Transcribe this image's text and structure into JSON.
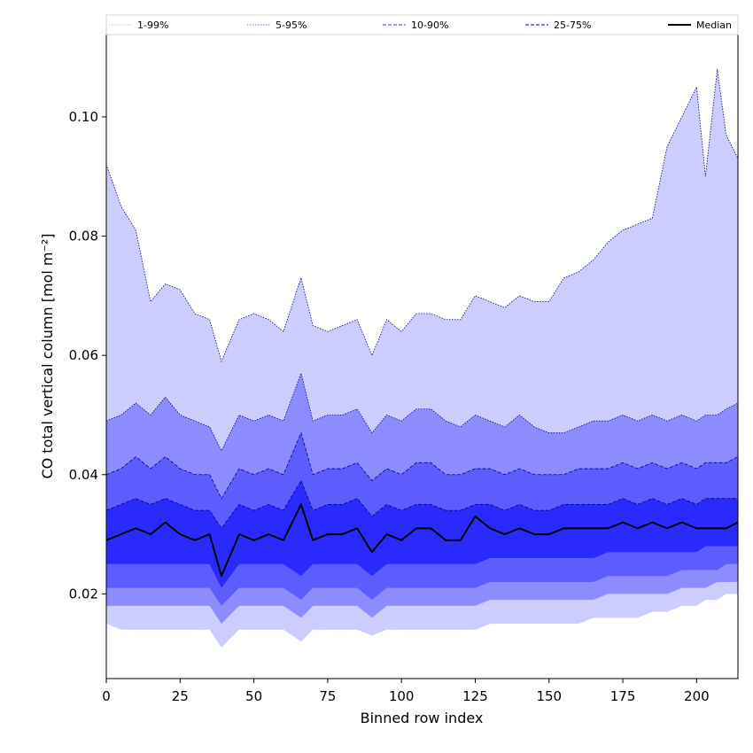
{
  "chart_data": {
    "type": "area",
    "xlabel": "Binned row index",
    "ylabel": "CO total vertical column [mol m⁻²]",
    "xlim": [
      0,
      214
    ],
    "ylim": [
      0.0058,
      0.1138
    ],
    "xticks": [
      "0",
      "25",
      "50",
      "75",
      "100",
      "125",
      "150",
      "175",
      "200"
    ],
    "yticks": [
      "0.02",
      "0.04",
      "0.06",
      "0.08",
      "0.10"
    ],
    "grid": false,
    "legend_position": "top",
    "x": [
      0,
      5,
      10,
      15,
      20,
      25,
      30,
      35,
      39,
      45,
      50,
      55,
      60,
      66,
      70,
      75,
      80,
      85,
      90,
      95,
      100,
      105,
      110,
      115,
      120,
      125,
      130,
      135,
      140,
      145,
      150,
      155,
      160,
      165,
      170,
      175,
      180,
      185,
      190,
      195,
      200,
      203,
      207,
      210,
      214
    ],
    "series": [
      {
        "name": "1-99%",
        "style": "dotted",
        "color": "#ccccff",
        "upper": [
          0.092,
          0.085,
          0.081,
          0.069,
          0.072,
          0.071,
          0.067,
          0.066,
          0.059,
          0.066,
          0.067,
          0.066,
          0.064,
          0.073,
          0.065,
          0.064,
          0.065,
          0.066,
          0.06,
          0.066,
          0.064,
          0.067,
          0.067,
          0.066,
          0.066,
          0.07,
          0.069,
          0.068,
          0.07,
          0.069,
          0.069,
          0.073,
          0.074,
          0.076,
          0.079,
          0.081,
          0.082,
          0.083,
          0.095,
          0.1,
          0.105,
          0.09,
          0.108,
          0.097,
          0.093
        ],
        "lower": [
          0.015,
          0.014,
          0.014,
          0.014,
          0.014,
          0.014,
          0.014,
          0.014,
          0.011,
          0.014,
          0.014,
          0.014,
          0.014,
          0.012,
          0.014,
          0.014,
          0.014,
          0.014,
          0.013,
          0.014,
          0.014,
          0.014,
          0.014,
          0.014,
          0.014,
          0.014,
          0.015,
          0.015,
          0.015,
          0.015,
          0.015,
          0.015,
          0.015,
          0.016,
          0.016,
          0.016,
          0.016,
          0.017,
          0.017,
          0.018,
          0.018,
          0.019,
          0.019,
          0.02,
          0.02
        ]
      },
      {
        "name": "5-95%",
        "style": "dotted",
        "color": "#8c8cff",
        "upper": [
          0.049,
          0.05,
          0.052,
          0.05,
          0.053,
          0.05,
          0.049,
          0.048,
          0.044,
          0.05,
          0.049,
          0.05,
          0.049,
          0.057,
          0.049,
          0.05,
          0.05,
          0.051,
          0.047,
          0.05,
          0.049,
          0.051,
          0.051,
          0.049,
          0.048,
          0.05,
          0.049,
          0.048,
          0.05,
          0.048,
          0.047,
          0.047,
          0.048,
          0.049,
          0.049,
          0.05,
          0.049,
          0.05,
          0.049,
          0.05,
          0.049,
          0.05,
          0.05,
          0.051,
          0.052
        ],
        "lower": [
          0.018,
          0.018,
          0.018,
          0.018,
          0.018,
          0.018,
          0.018,
          0.018,
          0.015,
          0.018,
          0.018,
          0.018,
          0.018,
          0.016,
          0.018,
          0.018,
          0.018,
          0.018,
          0.016,
          0.018,
          0.018,
          0.018,
          0.018,
          0.018,
          0.018,
          0.018,
          0.019,
          0.019,
          0.019,
          0.019,
          0.019,
          0.019,
          0.019,
          0.019,
          0.02,
          0.02,
          0.02,
          0.02,
          0.02,
          0.021,
          0.021,
          0.021,
          0.022,
          0.022,
          0.022
        ]
      },
      {
        "name": "10-90%",
        "style": "dashed",
        "color": "#5c5cff",
        "upper": [
          0.04,
          0.041,
          0.043,
          0.041,
          0.043,
          0.041,
          0.04,
          0.04,
          0.036,
          0.041,
          0.04,
          0.041,
          0.04,
          0.047,
          0.04,
          0.041,
          0.041,
          0.042,
          0.039,
          0.041,
          0.04,
          0.042,
          0.042,
          0.04,
          0.04,
          0.041,
          0.041,
          0.04,
          0.041,
          0.04,
          0.04,
          0.04,
          0.041,
          0.041,
          0.041,
          0.042,
          0.041,
          0.042,
          0.041,
          0.042,
          0.041,
          0.042,
          0.042,
          0.042,
          0.043
        ],
        "lower": [
          0.021,
          0.021,
          0.021,
          0.021,
          0.021,
          0.021,
          0.021,
          0.021,
          0.018,
          0.021,
          0.021,
          0.021,
          0.021,
          0.019,
          0.021,
          0.021,
          0.021,
          0.021,
          0.019,
          0.021,
          0.021,
          0.021,
          0.021,
          0.021,
          0.021,
          0.021,
          0.022,
          0.022,
          0.022,
          0.022,
          0.022,
          0.022,
          0.022,
          0.022,
          0.023,
          0.023,
          0.023,
          0.023,
          0.023,
          0.024,
          0.024,
          0.024,
          0.024,
          0.025,
          0.025
        ]
      },
      {
        "name": "25-75%",
        "style": "dashed",
        "color": "#2a2aff",
        "upper": [
          0.034,
          0.035,
          0.036,
          0.035,
          0.036,
          0.035,
          0.034,
          0.034,
          0.031,
          0.035,
          0.034,
          0.035,
          0.034,
          0.039,
          0.034,
          0.035,
          0.035,
          0.036,
          0.033,
          0.035,
          0.034,
          0.035,
          0.035,
          0.034,
          0.034,
          0.035,
          0.035,
          0.034,
          0.035,
          0.034,
          0.034,
          0.035,
          0.035,
          0.035,
          0.035,
          0.036,
          0.035,
          0.036,
          0.035,
          0.036,
          0.035,
          0.036,
          0.036,
          0.036,
          0.036
        ],
        "lower": [
          0.025,
          0.025,
          0.025,
          0.025,
          0.025,
          0.025,
          0.025,
          0.025,
          0.021,
          0.025,
          0.025,
          0.025,
          0.025,
          0.023,
          0.025,
          0.025,
          0.025,
          0.025,
          0.023,
          0.025,
          0.025,
          0.025,
          0.025,
          0.025,
          0.025,
          0.025,
          0.026,
          0.026,
          0.026,
          0.026,
          0.026,
          0.026,
          0.026,
          0.026,
          0.027,
          0.027,
          0.027,
          0.027,
          0.027,
          0.027,
          0.027,
          0.028,
          0.028,
          0.028,
          0.028
        ]
      },
      {
        "name": "Median",
        "style": "solid",
        "color": "#000000",
        "values": [
          0.029,
          0.03,
          0.031,
          0.03,
          0.032,
          0.03,
          0.029,
          0.03,
          0.023,
          0.03,
          0.029,
          0.03,
          0.029,
          0.035,
          0.029,
          0.03,
          0.03,
          0.031,
          0.027,
          0.03,
          0.029,
          0.031,
          0.031,
          0.029,
          0.029,
          0.033,
          0.031,
          0.03,
          0.031,
          0.03,
          0.03,
          0.031,
          0.031,
          0.031,
          0.031,
          0.032,
          0.031,
          0.032,
          0.031,
          0.032,
          0.031,
          0.031,
          0.031,
          0.031,
          0.032
        ]
      }
    ]
  }
}
